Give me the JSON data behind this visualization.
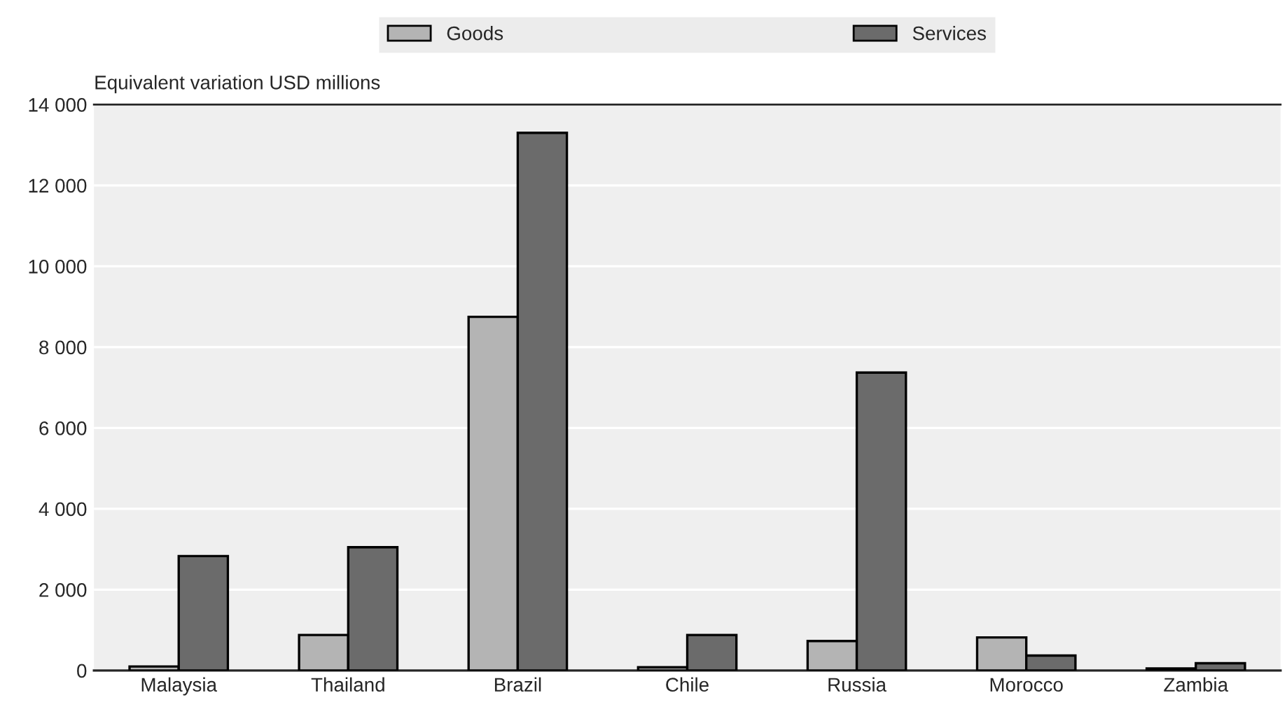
{
  "chart_data": {
    "type": "bar",
    "ylabel": "Equivalent variation USD millions",
    "categories": [
      "Malaysia",
      "Thailand",
      "Brazil",
      "Chile",
      "Russia",
      "Morocco",
      "Zambia"
    ],
    "series": [
      {
        "name": "Goods",
        "color": "#b4b4b4",
        "values": [
          100,
          880,
          8750,
          80,
          730,
          820,
          50
        ]
      },
      {
        "name": "Services",
        "color": "#6b6b6b",
        "values": [
          2830,
          3050,
          13300,
          880,
          7370,
          370,
          180
        ]
      }
    ],
    "ylim": [
      0,
      14000
    ],
    "yticks": [
      {
        "value": 0,
        "label": "0"
      },
      {
        "value": 2000,
        "label": "2 000"
      },
      {
        "value": 4000,
        "label": "4 000"
      },
      {
        "value": 6000,
        "label": "6 000"
      },
      {
        "value": 8000,
        "label": "8 000"
      },
      {
        "value": 10000,
        "label": "10 000"
      },
      {
        "value": 12000,
        "label": "12 000"
      },
      {
        "value": 14000,
        "label": "14 000"
      }
    ],
    "grid": "y",
    "legend": "top"
  }
}
